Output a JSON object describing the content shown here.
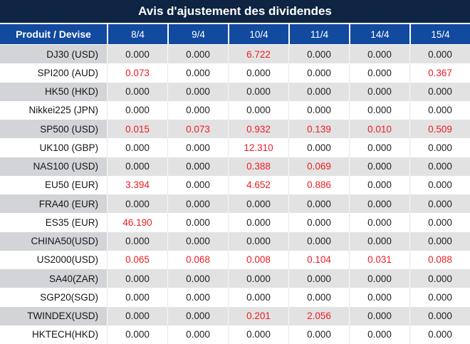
{
  "title": "Avis d'ajustement des dividendes",
  "colors": {
    "title_bg": "#0e2443",
    "header_bg": "#114a9e",
    "row_gray": "#e2e2e2",
    "product_gray": "#d2d4d7",
    "red": "#ed1c24",
    "text": "#222222"
  },
  "chart_data": {
    "type": "table",
    "title": "Avis d'ajustement des dividendes",
    "columns": [
      "Produit / Devise",
      "8/4",
      "9/4",
      "10/4",
      "11/4",
      "14/4",
      "15/4"
    ],
    "rows": [
      {
        "product": "DJ30 (USD)",
        "values": [
          "0.000",
          "0.000",
          "6.722",
          "0.000",
          "0.000",
          "0.000"
        ],
        "red_flags": [
          false,
          false,
          true,
          false,
          false,
          false
        ]
      },
      {
        "product": "SPI200 (AUD)",
        "values": [
          "0.073",
          "0.000",
          "0.000",
          "0.000",
          "0.000",
          "0.367"
        ],
        "red_flags": [
          true,
          false,
          false,
          false,
          false,
          true
        ]
      },
      {
        "product": "HK50 (HKD)",
        "values": [
          "0.000",
          "0.000",
          "0.000",
          "0.000",
          "0.000",
          "0.000"
        ],
        "red_flags": [
          false,
          false,
          false,
          false,
          false,
          false
        ]
      },
      {
        "product": "Nikkei225 (JPN)",
        "values": [
          "0.000",
          "0.000",
          "0.000",
          "0.000",
          "0.000",
          "0.000"
        ],
        "red_flags": [
          false,
          false,
          false,
          false,
          false,
          false
        ]
      },
      {
        "product": "SP500 (USD)",
        "values": [
          "0.015",
          "0.073",
          "0.932",
          "0.139",
          "0.010",
          "0.509"
        ],
        "red_flags": [
          true,
          true,
          true,
          true,
          true,
          true
        ]
      },
      {
        "product": "UK100 (GBP)",
        "values": [
          "0.000",
          "0.000",
          "12.310",
          "0.000",
          "0.000",
          "0.000"
        ],
        "red_flags": [
          false,
          false,
          true,
          false,
          false,
          false
        ]
      },
      {
        "product": "NAS100 (USD)",
        "values": [
          "0.000",
          "0.000",
          "0.388",
          "0.069",
          "0.000",
          "0.000"
        ],
        "red_flags": [
          false,
          false,
          true,
          true,
          false,
          false
        ]
      },
      {
        "product": "EU50 (EUR)",
        "values": [
          "3.394",
          "0.000",
          "4.652",
          "0.886",
          "0.000",
          "0.000"
        ],
        "red_flags": [
          true,
          false,
          true,
          true,
          false,
          false
        ]
      },
      {
        "product": "FRA40 (EUR)",
        "values": [
          "0.000",
          "0.000",
          "0.000",
          "0.000",
          "0.000",
          "0.000"
        ],
        "red_flags": [
          false,
          false,
          false,
          false,
          false,
          false
        ]
      },
      {
        "product": "ES35 (EUR)",
        "values": [
          "46.190",
          "0.000",
          "0.000",
          "0.000",
          "0.000",
          "0.000"
        ],
        "red_flags": [
          true,
          false,
          false,
          false,
          false,
          false
        ]
      },
      {
        "product": "CHINA50(USD)",
        "values": [
          "0.000",
          "0.000",
          "0.000",
          "0.000",
          "0.000",
          "0.000"
        ],
        "red_flags": [
          false,
          false,
          false,
          false,
          false,
          false
        ]
      },
      {
        "product": "US2000(USD)",
        "values": [
          "0.065",
          "0.068",
          "0.008",
          "0.104",
          "0.031",
          "0.088"
        ],
        "red_flags": [
          true,
          true,
          true,
          true,
          true,
          true
        ]
      },
      {
        "product": "SA40(ZAR)",
        "values": [
          "0.000",
          "0.000",
          "0.000",
          "0.000",
          "0.000",
          "0.000"
        ],
        "red_flags": [
          false,
          false,
          false,
          false,
          false,
          false
        ]
      },
      {
        "product": "SGP20(SGD)",
        "values": [
          "0.000",
          "0.000",
          "0.000",
          "0.000",
          "0.000",
          "0.000"
        ],
        "red_flags": [
          false,
          false,
          false,
          false,
          false,
          false
        ]
      },
      {
        "product": "TWINDEX(USD)",
        "values": [
          "0.000",
          "0.000",
          "0.201",
          "2.056",
          "0.000",
          "0.000"
        ],
        "red_flags": [
          false,
          false,
          true,
          true,
          false,
          false
        ]
      },
      {
        "product": "HKTECH(HKD)",
        "values": [
          "0.000",
          "0.000",
          "0.000",
          "0.000",
          "0.000",
          "0.000"
        ],
        "red_flags": [
          false,
          false,
          false,
          false,
          false,
          false
        ]
      }
    ]
  }
}
